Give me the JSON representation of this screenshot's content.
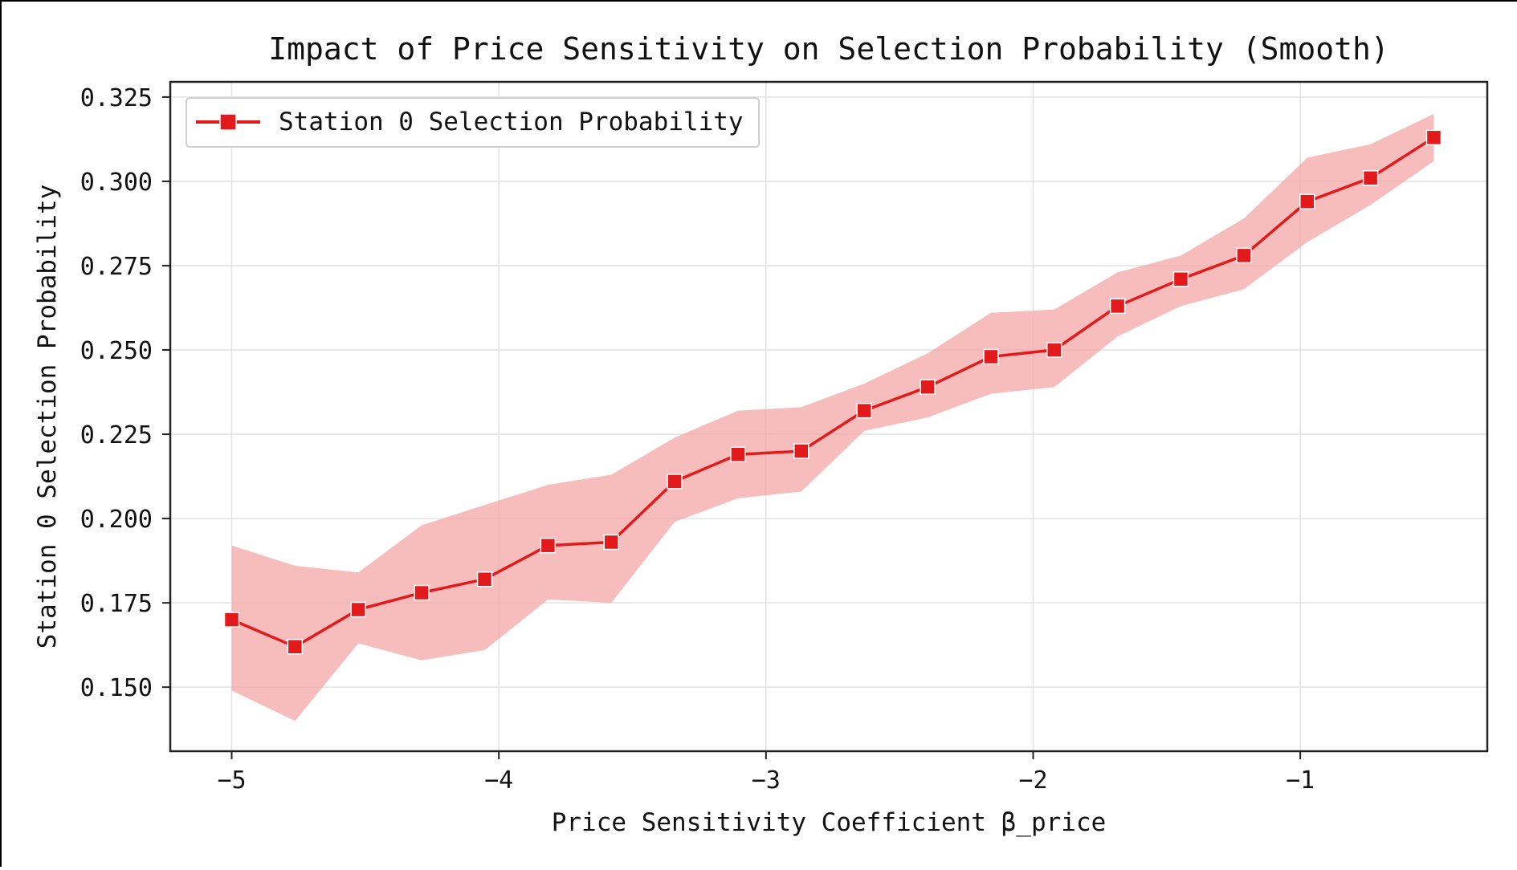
{
  "chart_data": {
    "type": "line",
    "title": "Impact of Price Sensitivity on Selection Probability (Smooth)",
    "xlabel": "Price Sensitivity Coefficient β_price",
    "ylabel": "Station 0 Selection Probability",
    "xlim": [
      -5.23,
      -0.3
    ],
    "ylim": [
      0.131,
      0.3295
    ],
    "xticks": [
      {
        "value": -5,
        "label": "−5"
      },
      {
        "value": -4,
        "label": "−4"
      },
      {
        "value": -3,
        "label": "−3"
      },
      {
        "value": -2,
        "label": "−2"
      },
      {
        "value": -1,
        "label": "−1"
      }
    ],
    "yticks": [
      {
        "value": 0.15,
        "label": "0.150"
      },
      {
        "value": 0.175,
        "label": "0.175"
      },
      {
        "value": 0.2,
        "label": "0.200"
      },
      {
        "value": 0.225,
        "label": "0.225"
      },
      {
        "value": 0.25,
        "label": "0.250"
      },
      {
        "value": 0.275,
        "label": "0.275"
      },
      {
        "value": 0.3,
        "label": "0.300"
      },
      {
        "value": 0.325,
        "label": "0.325"
      }
    ],
    "grid": true,
    "legend_position": "top-left",
    "series": [
      {
        "name": "Station 0 Selection Probability",
        "color": "#e31a1c",
        "band_color": "#f4a6a6",
        "marker": "square",
        "x": [
          -5.0,
          -4.763,
          -4.526,
          -4.289,
          -4.053,
          -3.816,
          -3.579,
          -3.342,
          -3.105,
          -2.868,
          -2.632,
          -2.395,
          -2.158,
          -1.921,
          -1.684,
          -1.447,
          -1.211,
          -0.974,
          -0.737,
          -0.5
        ],
        "y": [
          0.17,
          0.162,
          0.173,
          0.178,
          0.182,
          0.192,
          0.193,
          0.211,
          0.219,
          0.22,
          0.232,
          0.239,
          0.248,
          0.25,
          0.263,
          0.271,
          0.278,
          0.294,
          0.301,
          0.313
        ],
        "lower": [
          0.149,
          0.14,
          0.163,
          0.158,
          0.161,
          0.176,
          0.175,
          0.199,
          0.206,
          0.208,
          0.226,
          0.23,
          0.237,
          0.239,
          0.254,
          0.263,
          0.268,
          0.282,
          0.293,
          0.306
        ],
        "upper": [
          0.192,
          0.186,
          0.184,
          0.198,
          0.204,
          0.21,
          0.213,
          0.224,
          0.232,
          0.233,
          0.24,
          0.249,
          0.261,
          0.262,
          0.273,
          0.278,
          0.289,
          0.307,
          0.311,
          0.32
        ]
      }
    ]
  }
}
